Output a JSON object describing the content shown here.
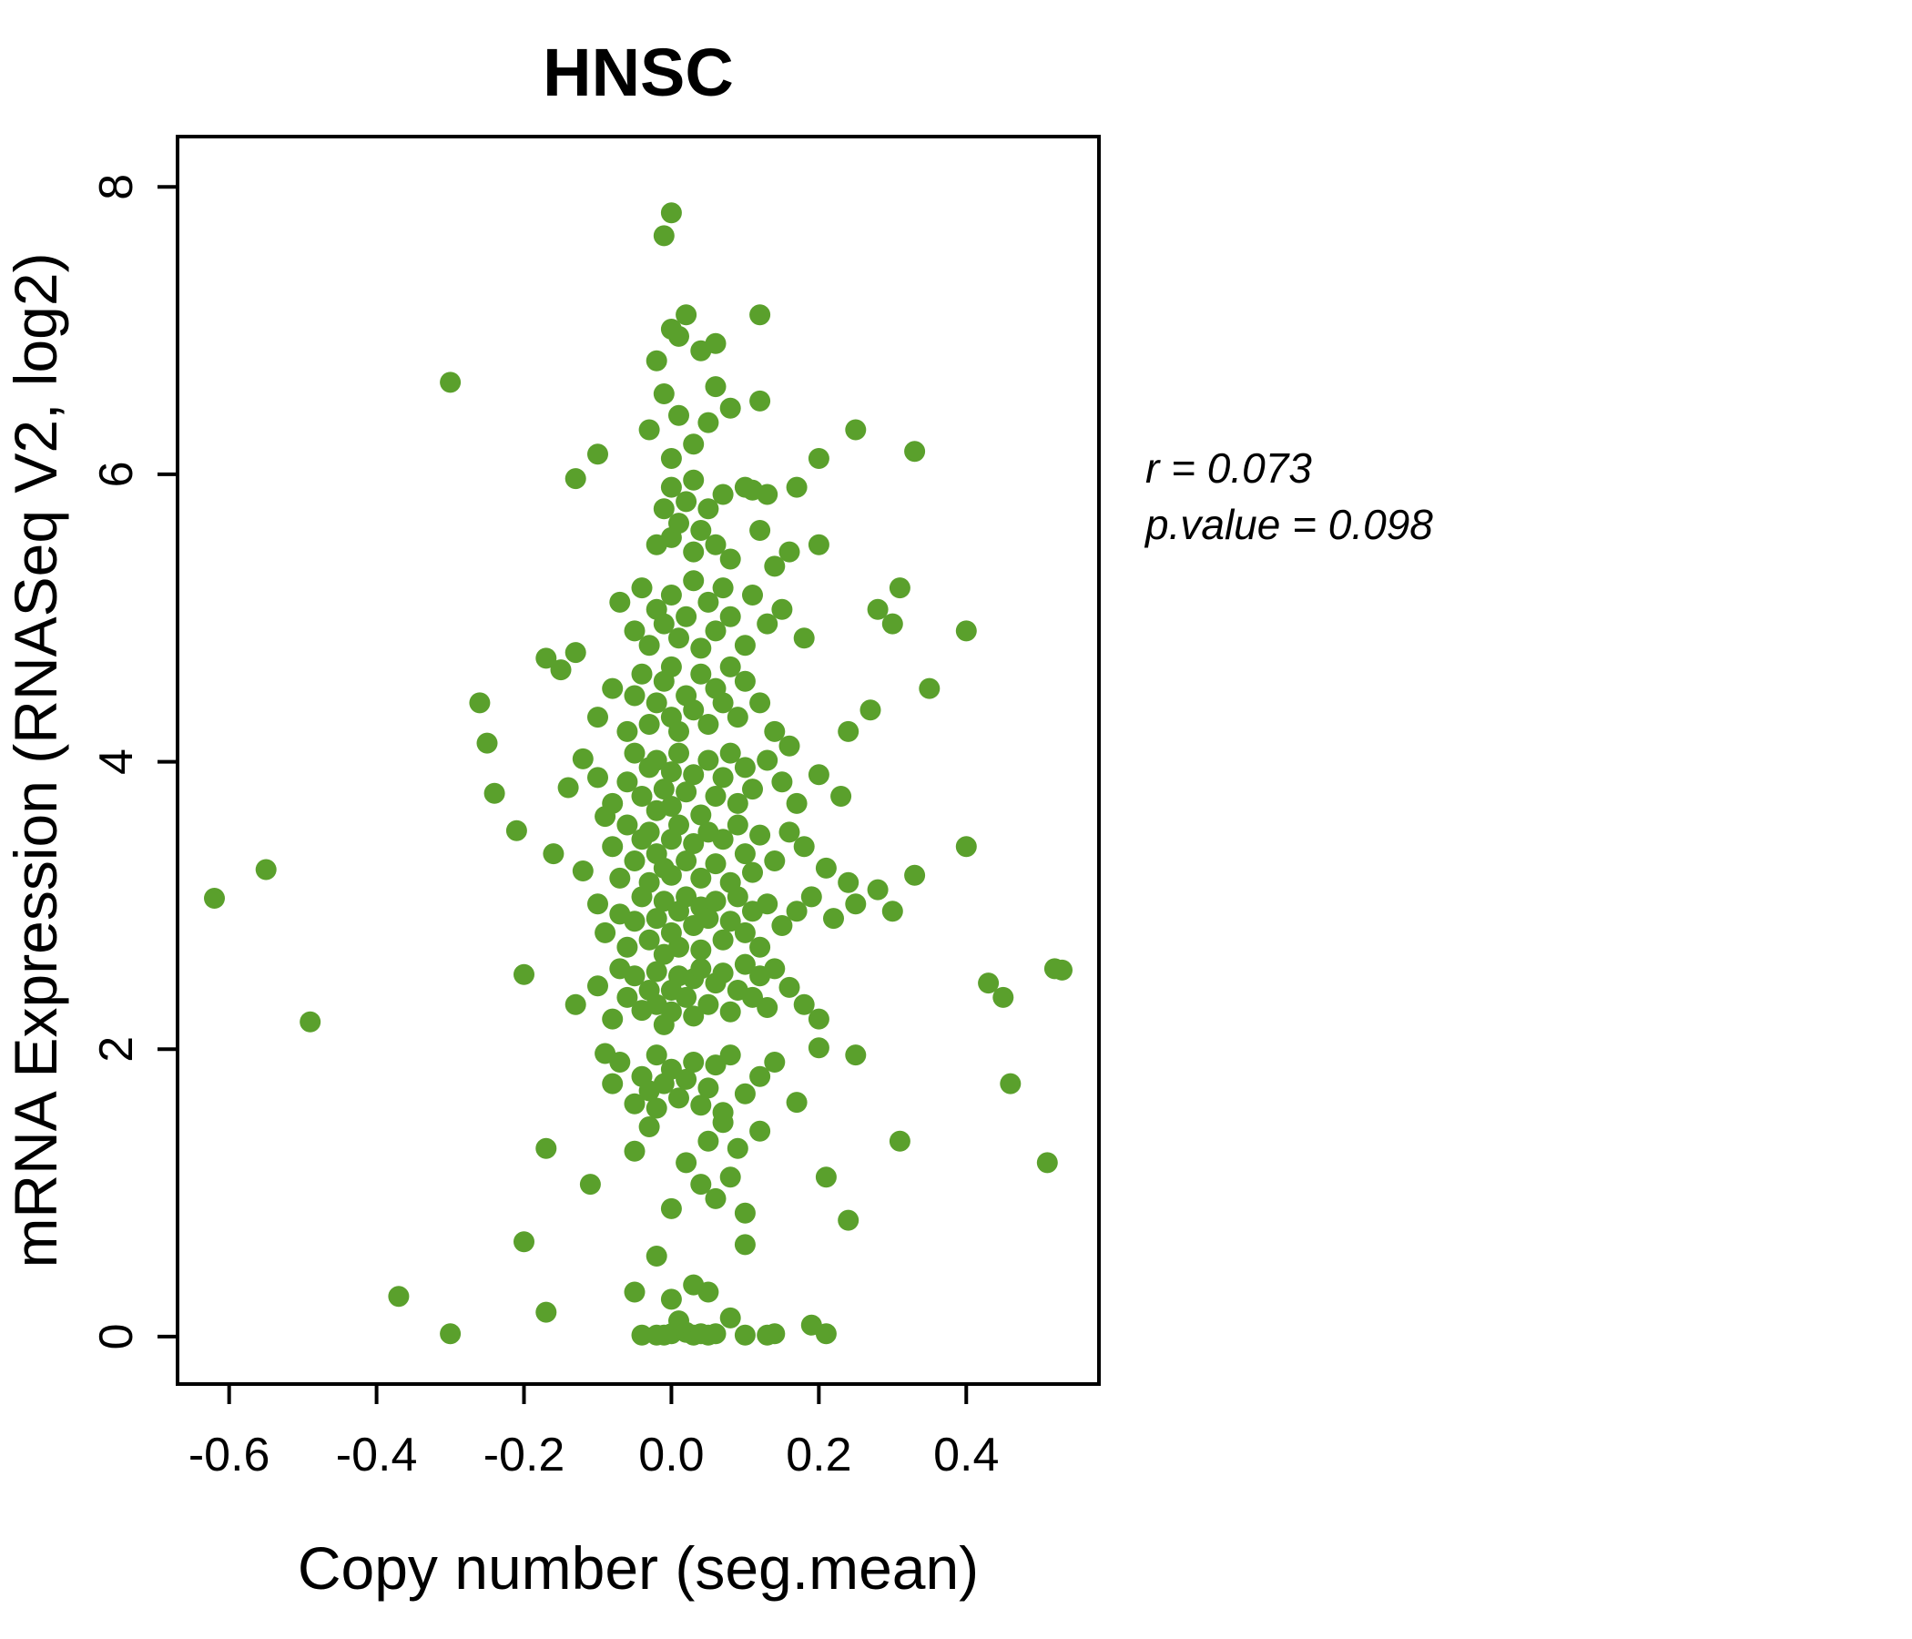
{
  "title": "HNSC",
  "title_color": "#5aa02c",
  "annotation": {
    "line1": "r = 0.073",
    "line2": "p.value = 0.098"
  },
  "chart_data": {
    "type": "scatter",
    "title": "HNSC",
    "xlabel": "Copy number (seg.mean)",
    "ylabel": "mRNA Expression (RNASeq V2, log2)",
    "x_ticks": [
      -0.6,
      -0.4,
      -0.2,
      0.0,
      0.2,
      0.4
    ],
    "x_tick_labels": [
      "-0.6",
      "-0.4",
      "-0.2",
      "0.0",
      "0.2",
      "0.4"
    ],
    "y_ticks": [
      0,
      2,
      4,
      6,
      8
    ],
    "y_tick_labels": [
      "0",
      "2",
      "4",
      "6",
      "8"
    ],
    "xlim": [
      -0.67,
      0.58
    ],
    "ylim": [
      -0.33,
      8.35
    ],
    "grid": false,
    "legend": "none",
    "point_color": "#5aa02c",
    "stats": {
      "r": 0.073,
      "p_value": 0.098
    },
    "points": [
      [
        -0.62,
        3.05
      ],
      [
        -0.55,
        3.25
      ],
      [
        -0.49,
        2.19
      ],
      [
        -0.37,
        0.28
      ],
      [
        -0.3,
        6.64
      ],
      [
        -0.3,
        0.02
      ],
      [
        -0.26,
        4.41
      ],
      [
        -0.25,
        4.13
      ],
      [
        -0.24,
        3.78
      ],
      [
        -0.21,
        3.52
      ],
      [
        -0.2,
        2.52
      ],
      [
        -0.2,
        0.66
      ],
      [
        -0.17,
        1.31
      ],
      [
        -0.17,
        0.17
      ],
      [
        -0.17,
        4.72
      ],
      [
        -0.16,
        3.36
      ],
      [
        -0.15,
        4.64
      ],
      [
        -0.14,
        3.82
      ],
      [
        -0.13,
        5.97
      ],
      [
        -0.13,
        2.31
      ],
      [
        -0.13,
        4.76
      ],
      [
        -0.12,
        4.02
      ],
      [
        -0.12,
        3.24
      ],
      [
        -0.11,
        1.06
      ],
      [
        -0.1,
        6.14
      ],
      [
        -0.1,
        4.31
      ],
      [
        -0.1,
        3.01
      ],
      [
        -0.1,
        2.44
      ],
      [
        -0.1,
        3.89
      ],
      [
        -0.09,
        2.81
      ],
      [
        -0.09,
        1.97
      ],
      [
        -0.09,
        3.62
      ],
      [
        -0.08,
        1.76
      ],
      [
        -0.08,
        2.21
      ],
      [
        -0.08,
        3.41
      ],
      [
        -0.08,
        4.51
      ],
      [
        -0.08,
        3.71
      ],
      [
        -0.07,
        1.91
      ],
      [
        -0.07,
        2.56
      ],
      [
        -0.07,
        2.94
      ],
      [
        -0.07,
        3.19
      ],
      [
        -0.07,
        5.11
      ],
      [
        -0.06,
        2.36
      ],
      [
        -0.06,
        2.71
      ],
      [
        -0.06,
        3.56
      ],
      [
        -0.06,
        3.86
      ],
      [
        -0.06,
        4.21
      ],
      [
        -0.05,
        1.62
      ],
      [
        -0.05,
        2.51
      ],
      [
        -0.05,
        2.89
      ],
      [
        -0.05,
        3.31
      ],
      [
        -0.05,
        4.06
      ],
      [
        -0.05,
        4.46
      ],
      [
        -0.05,
        4.91
      ],
      [
        -0.05,
        1.29
      ],
      [
        -0.05,
        0.31
      ],
      [
        -0.04,
        1.81
      ],
      [
        -0.04,
        2.27
      ],
      [
        -0.04,
        3.06
      ],
      [
        -0.04,
        3.46
      ],
      [
        -0.04,
        3.76
      ],
      [
        -0.04,
        4.61
      ],
      [
        -0.04,
        5.21
      ],
      [
        -0.04,
        0.01
      ],
      [
        -0.03,
        1.71
      ],
      [
        -0.03,
        2.41
      ],
      [
        -0.03,
        2.76
      ],
      [
        -0.03,
        3.16
      ],
      [
        -0.03,
        3.51
      ],
      [
        -0.03,
        3.96
      ],
      [
        -0.03,
        4.26
      ],
      [
        -0.03,
        4.81
      ],
      [
        -0.03,
        6.31
      ],
      [
        -0.03,
        1.46
      ],
      [
        -0.02,
        1.96
      ],
      [
        -0.02,
        1.59
      ],
      [
        -0.02,
        2.31
      ],
      [
        -0.02,
        2.54
      ],
      [
        -0.02,
        2.91
      ],
      [
        -0.02,
        3.36
      ],
      [
        -0.02,
        3.66
      ],
      [
        -0.02,
        4.01
      ],
      [
        -0.02,
        4.41
      ],
      [
        -0.02,
        5.06
      ],
      [
        -0.02,
        5.51
      ],
      [
        -0.02,
        6.79
      ],
      [
        -0.02,
        0.56
      ],
      [
        -0.02,
        0.01
      ],
      [
        -0.01,
        1.76
      ],
      [
        -0.01,
        2.17
      ],
      [
        -0.01,
        2.66
      ],
      [
        -0.01,
        3.03
      ],
      [
        -0.01,
        3.26
      ],
      [
        -0.01,
        3.81
      ],
      [
        -0.01,
        4.56
      ],
      [
        -0.01,
        4.96
      ],
      [
        -0.01,
        5.76
      ],
      [
        -0.01,
        6.56
      ],
      [
        -0.01,
        7.66
      ],
      [
        -0.01,
        0.01
      ],
      [
        0.0,
        0.26
      ],
      [
        0.0,
        0.89
      ],
      [
        0.0,
        1.86
      ],
      [
        0.0,
        2.26
      ],
      [
        0.0,
        2.41
      ],
      [
        0.0,
        2.81
      ],
      [
        0.0,
        3.21
      ],
      [
        0.0,
        3.46
      ],
      [
        0.0,
        3.69
      ],
      [
        0.0,
        3.93
      ],
      [
        0.0,
        4.31
      ],
      [
        0.0,
        4.66
      ],
      [
        0.0,
        5.16
      ],
      [
        0.0,
        5.56
      ],
      [
        0.0,
        5.91
      ],
      [
        0.0,
        6.11
      ],
      [
        0.0,
        7.01
      ],
      [
        0.0,
        7.82
      ],
      [
        0.0,
        0.02
      ],
      [
        0.01,
        0.11
      ],
      [
        0.01,
        1.66
      ],
      [
        0.01,
        2.51
      ],
      [
        0.01,
        2.71
      ],
      [
        0.01,
        2.96
      ],
      [
        0.01,
        3.56
      ],
      [
        0.01,
        4.06
      ],
      [
        0.01,
        4.21
      ],
      [
        0.01,
        4.86
      ],
      [
        0.01,
        5.66
      ],
      [
        0.01,
        6.41
      ],
      [
        0.01,
        6.96
      ],
      [
        0.02,
        1.21
      ],
      [
        0.02,
        1.79
      ],
      [
        0.02,
        2.36
      ],
      [
        0.02,
        3.06
      ],
      [
        0.02,
        3.31
      ],
      [
        0.02,
        3.79
      ],
      [
        0.02,
        4.46
      ],
      [
        0.02,
        5.01
      ],
      [
        0.02,
        5.81
      ],
      [
        0.02,
        7.11
      ],
      [
        0.02,
        0.03
      ],
      [
        0.03,
        0.36
      ],
      [
        0.03,
        1.91
      ],
      [
        0.03,
        2.23
      ],
      [
        0.03,
        2.49
      ],
      [
        0.03,
        2.86
      ],
      [
        0.03,
        3.43
      ],
      [
        0.03,
        3.91
      ],
      [
        0.03,
        4.36
      ],
      [
        0.03,
        5.26
      ],
      [
        0.03,
        5.46
      ],
      [
        0.03,
        5.96
      ],
      [
        0.03,
        6.21
      ],
      [
        0.03,
        0.01
      ],
      [
        0.04,
        1.06
      ],
      [
        0.04,
        1.61
      ],
      [
        0.04,
        2.56
      ],
      [
        0.04,
        2.69
      ],
      [
        0.04,
        2.99
      ],
      [
        0.04,
        3.19
      ],
      [
        0.04,
        3.63
      ],
      [
        0.04,
        4.61
      ],
      [
        0.04,
        4.79
      ],
      [
        0.04,
        5.61
      ],
      [
        0.04,
        6.86
      ],
      [
        0.04,
        0.02
      ],
      [
        0.05,
        0.31
      ],
      [
        0.05,
        1.36
      ],
      [
        0.05,
        1.73
      ],
      [
        0.05,
        2.31
      ],
      [
        0.05,
        2.91
      ],
      [
        0.05,
        3.51
      ],
      [
        0.05,
        4.01
      ],
      [
        0.05,
        4.26
      ],
      [
        0.05,
        5.11
      ],
      [
        0.05,
        5.76
      ],
      [
        0.05,
        6.36
      ],
      [
        0.05,
        0.01
      ],
      [
        0.06,
        0.96
      ],
      [
        0.06,
        1.89
      ],
      [
        0.06,
        2.46
      ],
      [
        0.06,
        3.03
      ],
      [
        0.06,
        3.29
      ],
      [
        0.06,
        3.76
      ],
      [
        0.06,
        4.51
      ],
      [
        0.06,
        4.91
      ],
      [
        0.06,
        5.51
      ],
      [
        0.06,
        6.61
      ],
      [
        0.06,
        6.91
      ],
      [
        0.06,
        0.02
      ],
      [
        0.07,
        1.49
      ],
      [
        0.07,
        1.56
      ],
      [
        0.07,
        2.53
      ],
      [
        0.07,
        2.76
      ],
      [
        0.07,
        3.46
      ],
      [
        0.07,
        3.89
      ],
      [
        0.07,
        4.41
      ],
      [
        0.07,
        5.21
      ],
      [
        0.07,
        5.86
      ],
      [
        0.08,
        0.13
      ],
      [
        0.08,
        1.11
      ],
      [
        0.08,
        1.96
      ],
      [
        0.08,
        2.26
      ],
      [
        0.08,
        2.89
      ],
      [
        0.08,
        3.16
      ],
      [
        0.08,
        4.06
      ],
      [
        0.08,
        4.66
      ],
      [
        0.08,
        5.01
      ],
      [
        0.08,
        5.41
      ],
      [
        0.08,
        6.46
      ],
      [
        0.09,
        1.31
      ],
      [
        0.09,
        2.41
      ],
      [
        0.09,
        3.06
      ],
      [
        0.09,
        3.56
      ],
      [
        0.09,
        3.71
      ],
      [
        0.09,
        4.31
      ],
      [
        0.1,
        0.64
      ],
      [
        0.1,
        0.86
      ],
      [
        0.1,
        1.69
      ],
      [
        0.1,
        2.59
      ],
      [
        0.1,
        2.81
      ],
      [
        0.1,
        3.36
      ],
      [
        0.1,
        3.96
      ],
      [
        0.1,
        4.56
      ],
      [
        0.1,
        4.81
      ],
      [
        0.1,
        5.91
      ],
      [
        0.1,
        0.01
      ],
      [
        0.11,
        2.36
      ],
      [
        0.11,
        2.96
      ],
      [
        0.11,
        3.23
      ],
      [
        0.11,
        3.81
      ],
      [
        0.11,
        5.16
      ],
      [
        0.11,
        5.89
      ],
      [
        0.12,
        1.43
      ],
      [
        0.12,
        1.81
      ],
      [
        0.12,
        2.51
      ],
      [
        0.12,
        2.71
      ],
      [
        0.12,
        3.49
      ],
      [
        0.12,
        4.41
      ],
      [
        0.12,
        5.61
      ],
      [
        0.12,
        6.51
      ],
      [
        0.12,
        7.11
      ],
      [
        0.13,
        2.29
      ],
      [
        0.13,
        3.01
      ],
      [
        0.13,
        4.01
      ],
      [
        0.13,
        4.96
      ],
      [
        0.13,
        5.86
      ],
      [
        0.13,
        0.01
      ],
      [
        0.14,
        1.91
      ],
      [
        0.14,
        2.56
      ],
      [
        0.14,
        3.31
      ],
      [
        0.14,
        4.21
      ],
      [
        0.14,
        5.36
      ],
      [
        0.14,
        0.02
      ],
      [
        0.15,
        2.86
      ],
      [
        0.15,
        3.86
      ],
      [
        0.15,
        5.06
      ],
      [
        0.16,
        2.43
      ],
      [
        0.16,
        3.51
      ],
      [
        0.16,
        4.11
      ],
      [
        0.16,
        5.46
      ],
      [
        0.17,
        1.63
      ],
      [
        0.17,
        2.96
      ],
      [
        0.17,
        3.71
      ],
      [
        0.17,
        5.91
      ],
      [
        0.18,
        2.31
      ],
      [
        0.18,
        3.41
      ],
      [
        0.18,
        4.86
      ],
      [
        0.19,
        0.08
      ],
      [
        0.19,
        3.06
      ],
      [
        0.2,
        2.01
      ],
      [
        0.2,
        2.21
      ],
      [
        0.2,
        3.91
      ],
      [
        0.2,
        6.11
      ],
      [
        0.2,
        5.51
      ],
      [
        0.21,
        1.11
      ],
      [
        0.21,
        3.26
      ],
      [
        0.21,
        0.02
      ],
      [
        0.22,
        2.91
      ],
      [
        0.23,
        3.76
      ],
      [
        0.24,
        0.81
      ],
      [
        0.24,
        3.16
      ],
      [
        0.24,
        4.21
      ],
      [
        0.25,
        1.96
      ],
      [
        0.25,
        3.01
      ],
      [
        0.25,
        6.31
      ],
      [
        0.27,
        4.36
      ],
      [
        0.28,
        3.11
      ],
      [
        0.28,
        5.06
      ],
      [
        0.3,
        2.96
      ],
      [
        0.3,
        4.96
      ],
      [
        0.31,
        1.36
      ],
      [
        0.31,
        5.21
      ],
      [
        0.33,
        6.16
      ],
      [
        0.33,
        3.21
      ],
      [
        0.35,
        4.51
      ],
      [
        0.4,
        4.91
      ],
      [
        0.4,
        3.41
      ],
      [
        0.43,
        2.46
      ],
      [
        0.45,
        2.36
      ],
      [
        0.46,
        1.76
      ],
      [
        0.51,
        1.21
      ],
      [
        0.52,
        2.56
      ],
      [
        0.53,
        2.55
      ]
    ]
  }
}
